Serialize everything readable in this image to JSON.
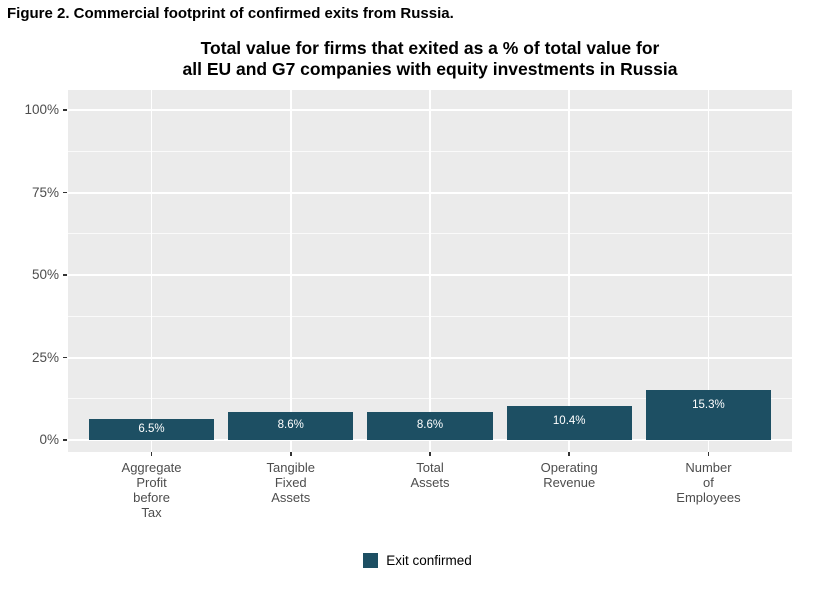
{
  "figure": {
    "caption": "Figure 2. Commercial footprint of confirmed exits from Russia."
  },
  "chart_data": {
    "type": "bar",
    "title": "Total value for firms that exited as a % of total value for all EU and G7 companies with equity investments in Russia",
    "title_lines": [
      "Total value for firms that exited as a % of total value for",
      "all EU and G7 companies with equity investments in Russia"
    ],
    "categories": [
      "Aggregate\nProfit\nbefore\nTax",
      "Tangible\nFixed\nAssets",
      "Total\nAssets",
      "Operating\nRevenue",
      "Number\nof\nEmployees"
    ],
    "series": [
      {
        "name": "Exit confirmed",
        "values": [
          6.5,
          8.6,
          8.6,
          10.4,
          15.3
        ]
      }
    ],
    "bar_labels": [
      "6.5%",
      "8.6%",
      "8.6%",
      "10.4%",
      "15.3%"
    ],
    "xlabel": "",
    "ylabel": "",
    "ylim": [
      0,
      100
    ],
    "yticks": [
      0,
      25,
      50,
      75,
      100
    ],
    "ytick_labels": [
      "0%",
      "25%",
      "50%",
      "75%",
      "100%"
    ],
    "yticks_minor": [
      12.5,
      37.5,
      62.5,
      87.5
    ],
    "grid": true,
    "legend_position": "bottom",
    "legend_label": "Exit confirmed",
    "bar_color": "#1d4f63",
    "panel_bg": "#ebebeb",
    "label_color": "#ffffff"
  }
}
